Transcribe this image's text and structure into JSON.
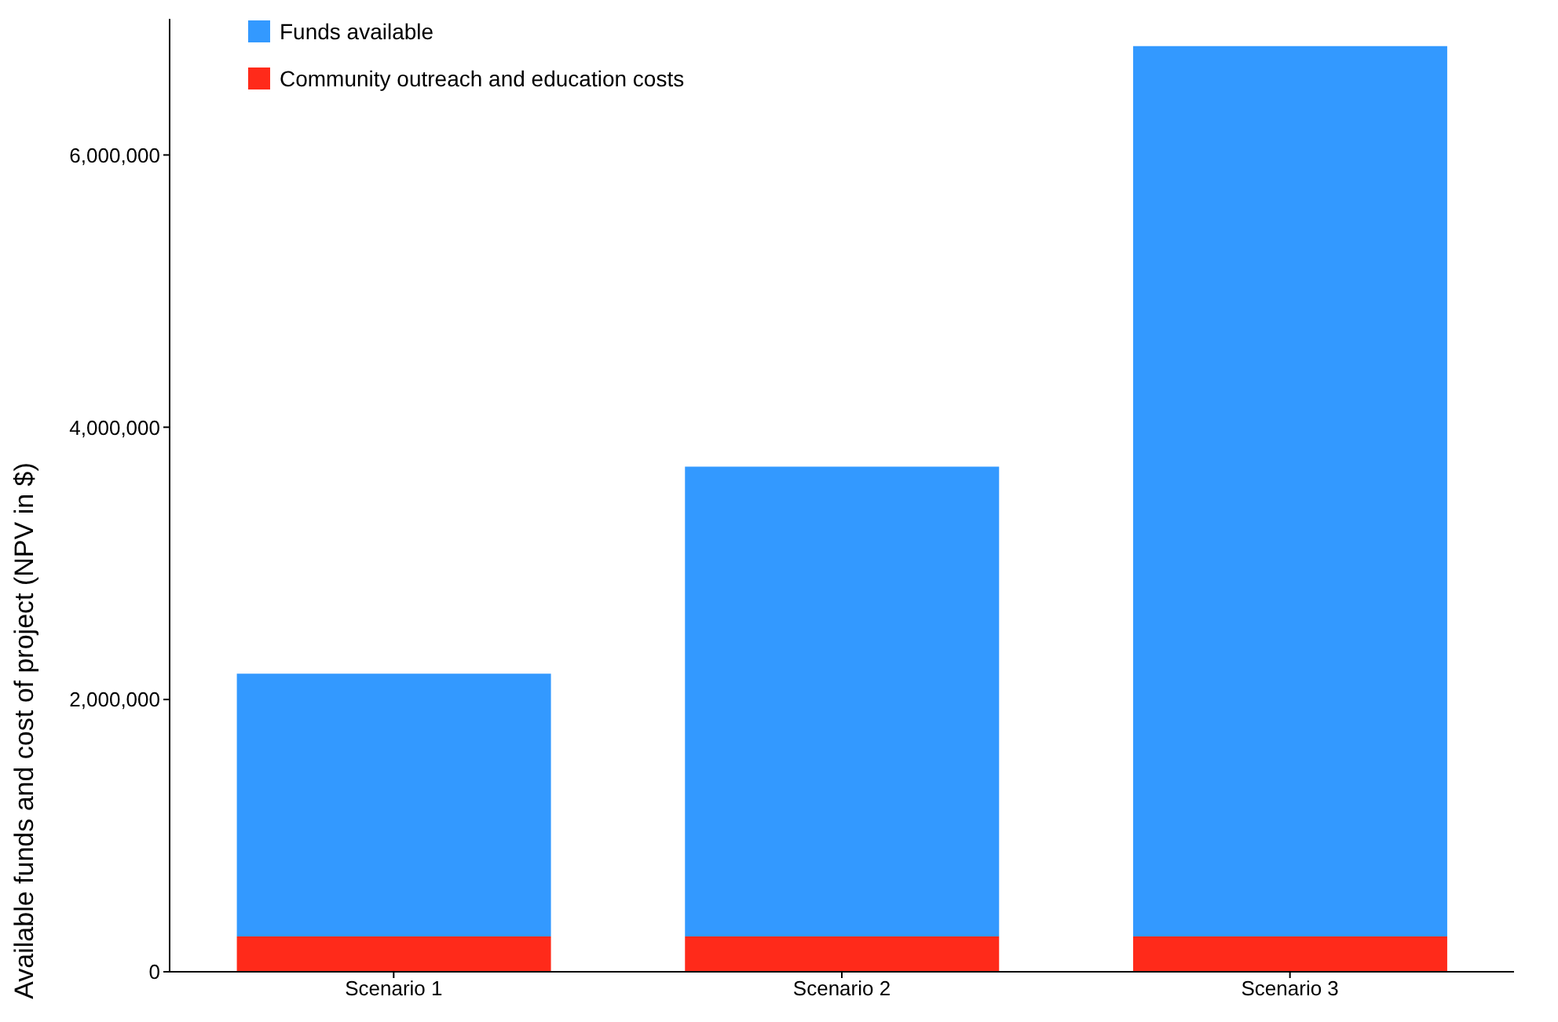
{
  "chart_data": {
    "type": "bar",
    "stacked": true,
    "ylabel": "Available funds and cost of project (NPV in $)",
    "categories": [
      "Scenario 1",
      "Scenario 2",
      "Scenario 3"
    ],
    "series": [
      {
        "name": "Community outreach and education costs",
        "color": "#ff2a1a",
        "values": [
          260000,
          260000,
          260000
        ]
      },
      {
        "name": "Funds available",
        "color": "#3399ff",
        "values": [
          1930000,
          3450000,
          6540000
        ]
      }
    ],
    "ylim": [
      0,
      7000000
    ],
    "yticks": [
      0,
      {
        "value": 2000000,
        "label": "2,000,000"
      },
      {
        "value": 4000000,
        "label": "4,000,000"
      },
      {
        "value": 6000000,
        "label": "6,000,000"
      }
    ],
    "grid": false,
    "legend": "top left"
  }
}
